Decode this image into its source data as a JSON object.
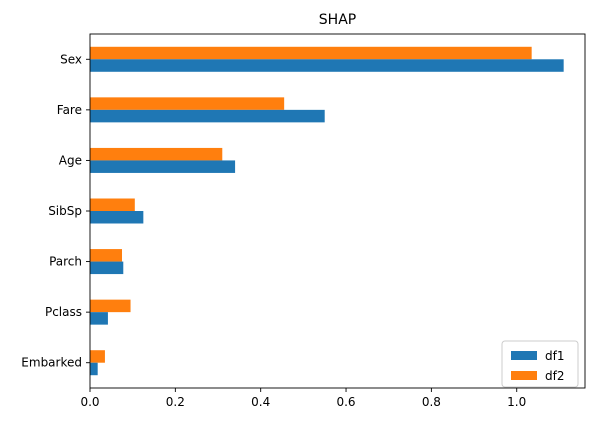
{
  "chart_data": {
    "type": "bar",
    "orientation": "horizontal",
    "title": "SHAP",
    "xlabel": "",
    "ylabel": "",
    "categories": [
      "Sex",
      "Fare",
      "Age",
      "SibSp",
      "Parch",
      "Pclass",
      "Embarked"
    ],
    "series": [
      {
        "name": "df1",
        "color": "#1f77b4",
        "values": [
          1.11,
          0.55,
          0.34,
          0.125,
          0.078,
          0.042,
          0.018
        ]
      },
      {
        "name": "df2",
        "color": "#ff7f0e",
        "values": [
          1.035,
          0.455,
          0.31,
          0.105,
          0.075,
          0.095,
          0.035
        ]
      }
    ],
    "xlim": [
      0,
      1.16
    ],
    "xticks": [
      0.0,
      0.2,
      0.4,
      0.6,
      0.8,
      1.0
    ],
    "xtick_labels": [
      "0.0",
      "0.2",
      "0.4",
      "0.6",
      "0.8",
      "1.0"
    ],
    "grid": false,
    "legend": {
      "position": "lower-right",
      "entries": [
        "df1",
        "df2"
      ]
    }
  }
}
